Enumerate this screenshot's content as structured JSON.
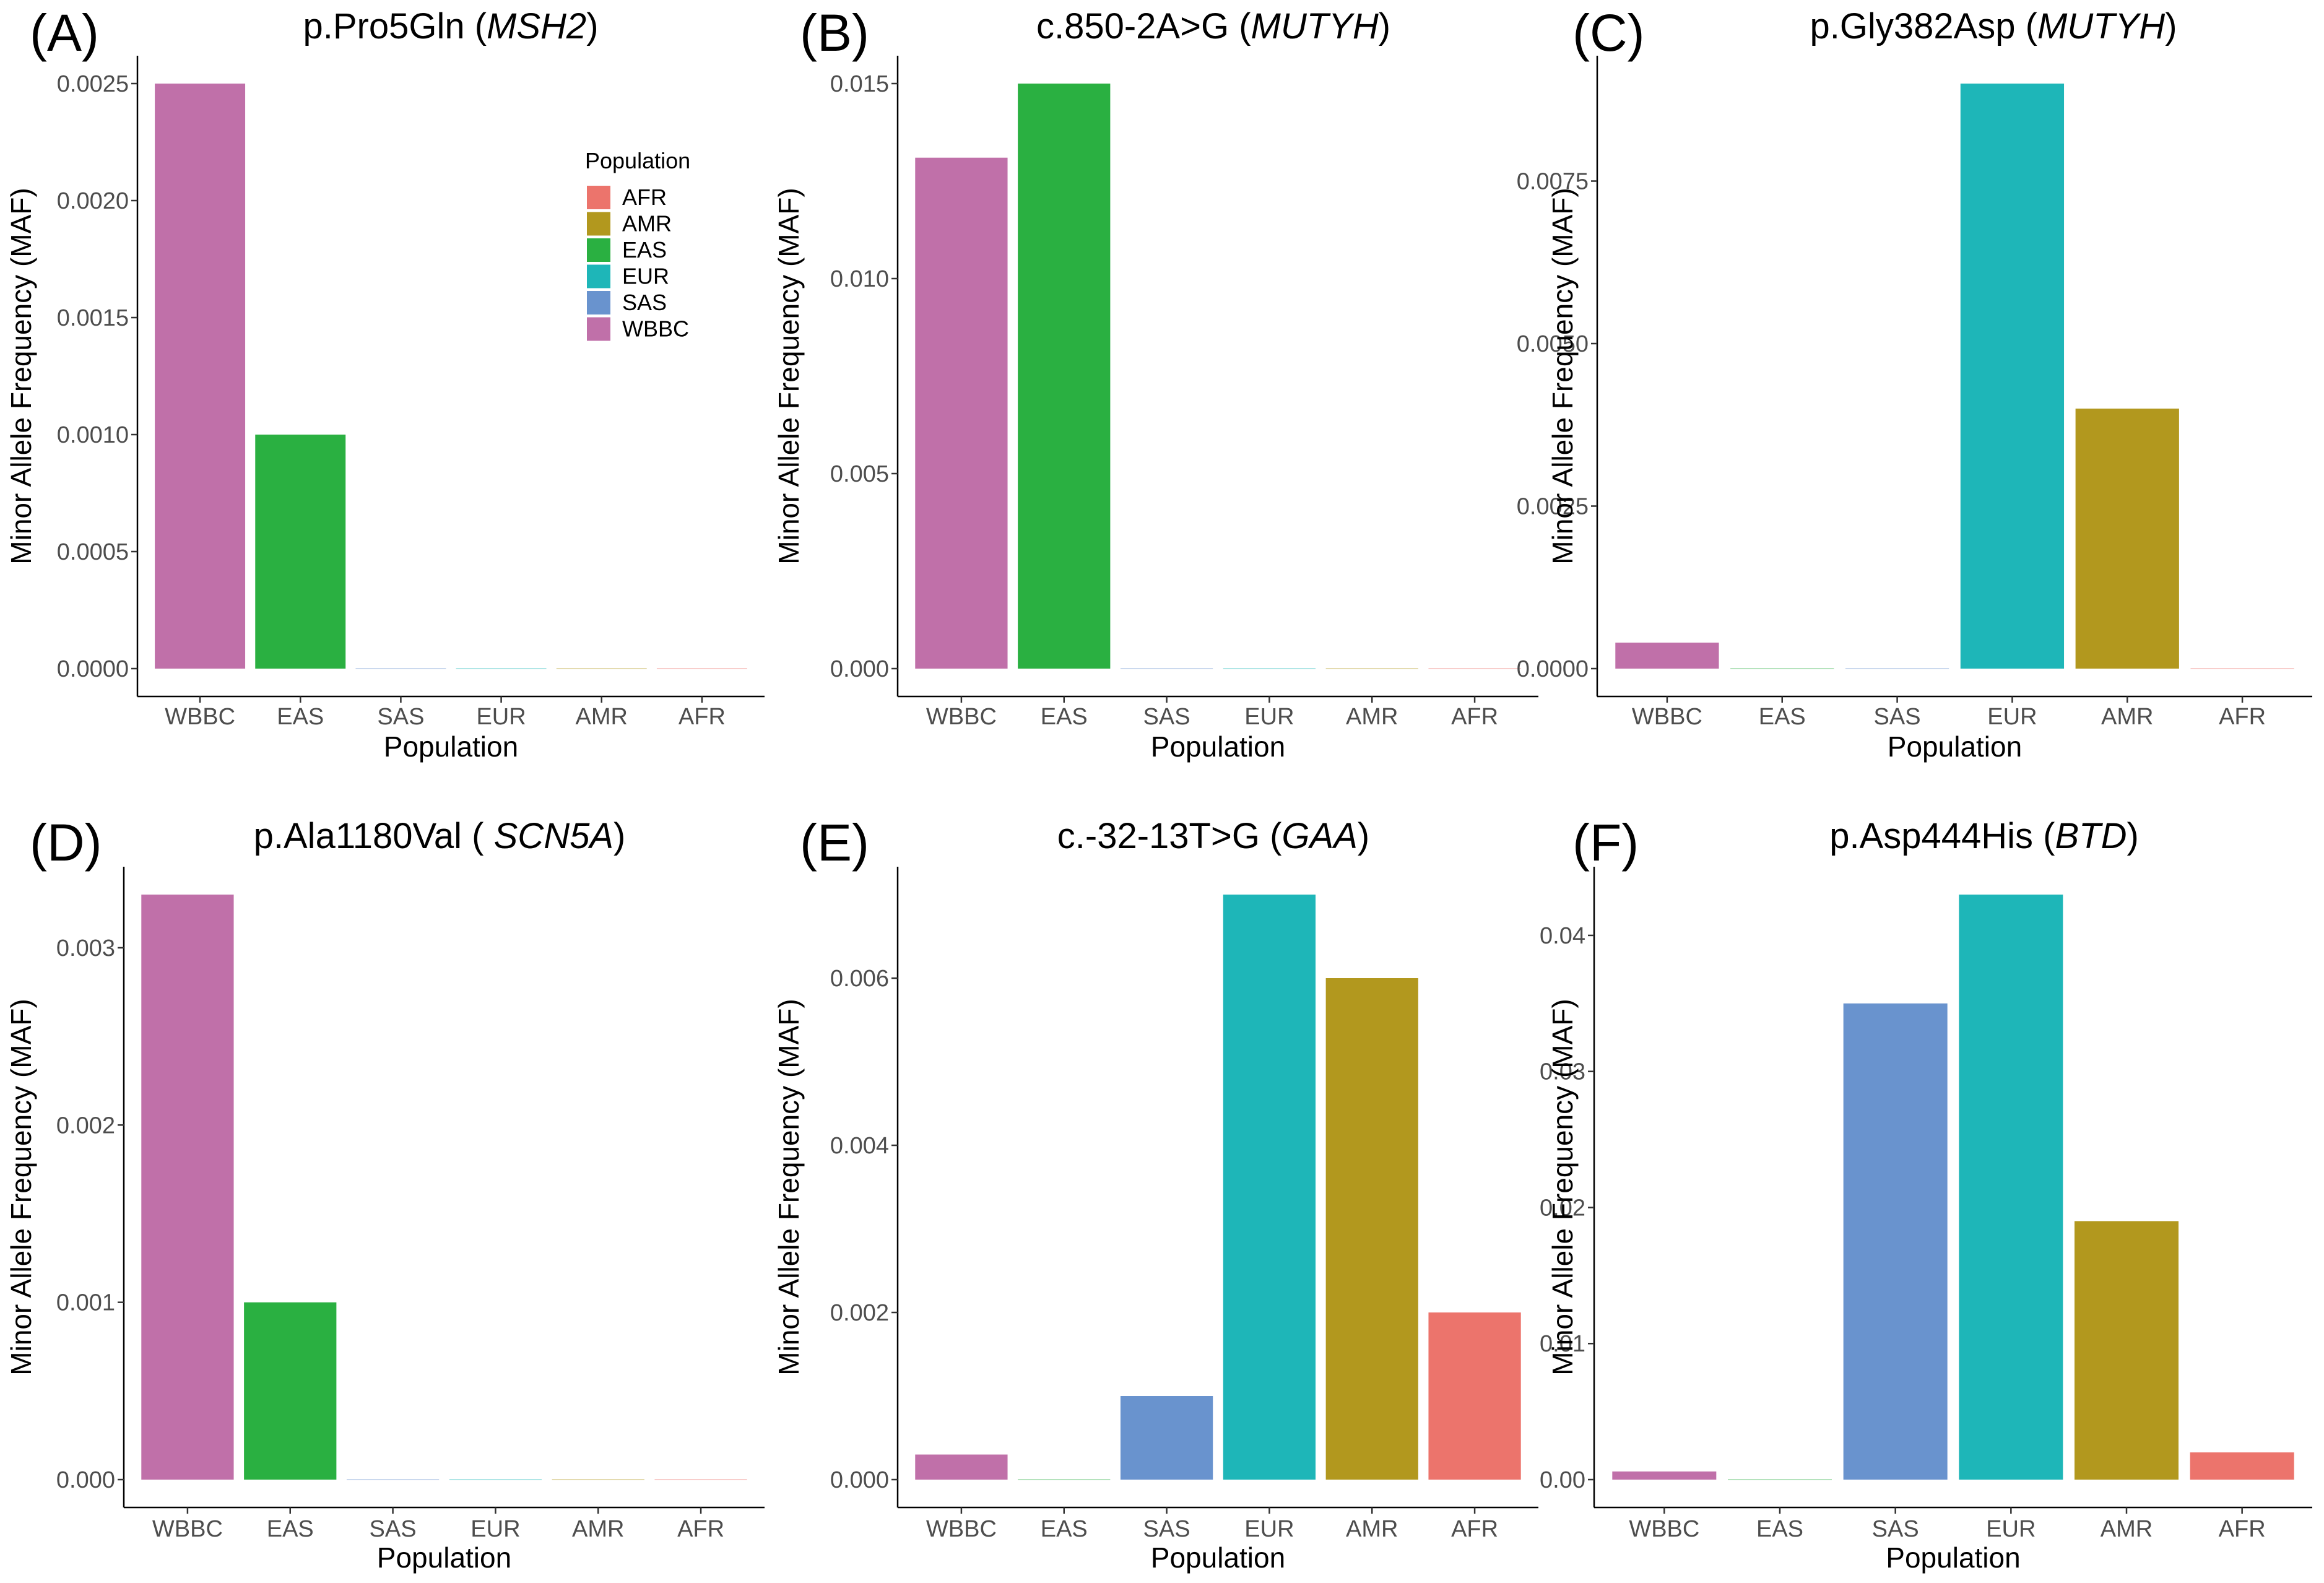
{
  "figure": {
    "x_axis_title": "Population",
    "y_axis_title": "Minor Allele Frequency (MAF)"
  },
  "legend": {
    "title": "Population",
    "entries": [
      {
        "label": "AFR",
        "color": "#ec746c"
      },
      {
        "label": "AMR",
        "color": "#b2981e"
      },
      {
        "label": "EAS",
        "color": "#2ab041"
      },
      {
        "label": "EUR",
        "color": "#1eb6b8"
      },
      {
        "label": "SAS",
        "color": "#6993ce"
      },
      {
        "label": "WBBC",
        "color": "#c070a9"
      }
    ]
  },
  "chart_data": [
    {
      "type": "bar",
      "panel": "(A)",
      "title_plain": "p.Pro5Gln (",
      "title_gene": "MSH2",
      "title_close": ")",
      "xlabel": "Population",
      "ylabel": "Minor Allele Frequency (MAF)",
      "categories": [
        "WBBC",
        "EAS",
        "SAS",
        "EUR",
        "AMR",
        "AFR"
      ],
      "values": [
        0.0025,
        0.001,
        0,
        0,
        0,
        0
      ],
      "ylim": [
        0,
        0.0025
      ],
      "yticks": [
        "0.0000",
        "0.0005",
        "0.0010",
        "0.0015",
        "0.0020",
        "0.0025"
      ],
      "ytick_values": [
        0,
        0.0005,
        0.001,
        0.0015,
        0.002,
        0.0025
      ],
      "legend": "top-right"
    },
    {
      "type": "bar",
      "panel": "(B)",
      "title_plain": "c.850-2A>G (",
      "title_gene": "MUTYH",
      "title_close": ")",
      "xlabel": "Population",
      "ylabel": "Minor Allele Frequency (MAF)",
      "categories": [
        "WBBC",
        "EAS",
        "SAS",
        "EUR",
        "AMR",
        "AFR"
      ],
      "values": [
        0.0131,
        0.015,
        0,
        0,
        0,
        0
      ],
      "ylim": [
        0,
        0.015
      ],
      "yticks": [
        "0.000",
        "0.005",
        "0.010",
        "0.015"
      ],
      "ytick_values": [
        0,
        0.005,
        0.01,
        0.015
      ]
    },
    {
      "type": "bar",
      "panel": "(C)",
      "title_plain": "p.Gly382Asp (",
      "title_gene": "MUTYH",
      "title_close": ")",
      "xlabel": "Population",
      "ylabel": "Minor Allele Frequency (MAF)",
      "categories": [
        "WBBC",
        "EAS",
        "SAS",
        "EUR",
        "AMR",
        "AFR"
      ],
      "values": [
        0.0004,
        0,
        0,
        0.009,
        0.004,
        0
      ],
      "ylim": [
        0,
        0.009
      ],
      "yticks": [
        "0.0000",
        "0.0025",
        "0.0050",
        "0.0075"
      ],
      "ytick_values": [
        0,
        0.0025,
        0.005,
        0.0075
      ]
    },
    {
      "type": "bar",
      "panel": "(D)",
      "title_plain": "p.Ala1180Val ( ",
      "title_gene": "SCN5A",
      "title_close": ")",
      "xlabel": "Population",
      "ylabel": "Minor Allele Frequency (MAF)",
      "categories": [
        "WBBC",
        "EAS",
        "SAS",
        "EUR",
        "AMR",
        "AFR"
      ],
      "values": [
        0.0033,
        0.001,
        0,
        0,
        0,
        0
      ],
      "ylim": [
        0,
        0.0033
      ],
      "yticks": [
        "0.000",
        "0.001",
        "0.002",
        "0.003"
      ],
      "ytick_values": [
        0,
        0.001,
        0.002,
        0.003
      ]
    },
    {
      "type": "bar",
      "panel": "(E)",
      "title_plain": "c.-32-13T>G (",
      "title_gene": "GAA",
      "title_close": ")",
      "xlabel": "Population",
      "ylabel": "Minor Allele Frequency (MAF)",
      "categories": [
        "WBBC",
        "EAS",
        "SAS",
        "EUR",
        "AMR",
        "AFR"
      ],
      "values": [
        0.0003,
        0,
        0.001,
        0.007,
        0.006,
        0.002
      ],
      "ylim": [
        0,
        0.007
      ],
      "yticks": [
        "0.000",
        "0.002",
        "0.004",
        "0.006"
      ],
      "ytick_values": [
        0,
        0.002,
        0.004,
        0.006
      ]
    },
    {
      "type": "bar",
      "panel": "(F)",
      "title_plain": "p.Asp444His (",
      "title_gene": "BTD",
      "title_close": ")",
      "xlabel": "Population",
      "ylabel": "Minor Allele Frequency (MAF)",
      "categories": [
        "WBBC",
        "EAS",
        "SAS",
        "EUR",
        "AMR",
        "AFR"
      ],
      "values": [
        0.0006,
        0,
        0.035,
        0.043,
        0.019,
        0.002
      ],
      "ylim": [
        0,
        0.043
      ],
      "yticks": [
        "0.00",
        "0.01",
        "0.02",
        "0.03",
        "0.04"
      ],
      "ytick_values": [
        0,
        0.01,
        0.02,
        0.03,
        0.04
      ]
    }
  ]
}
